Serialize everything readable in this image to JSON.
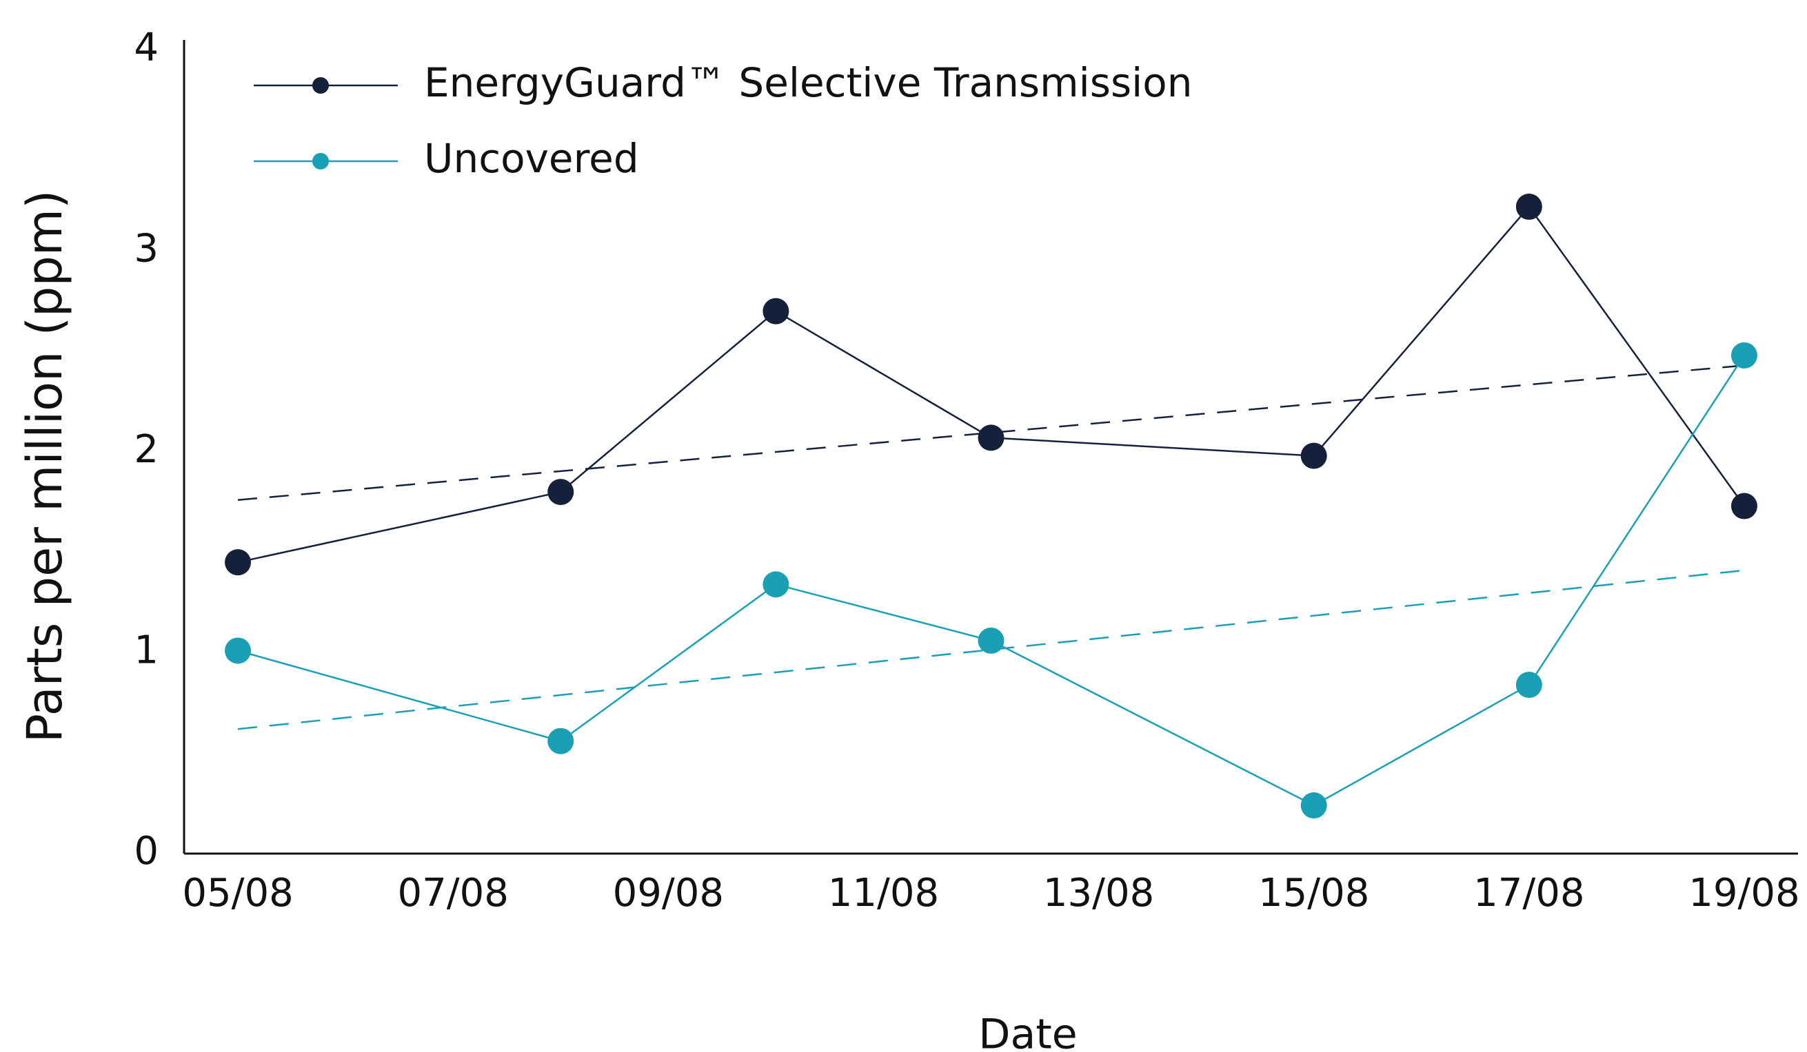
{
  "chart_data": {
    "type": "line",
    "x_label": "Date",
    "y_label": "Parts per million (ppm)",
    "x": [
      5,
      8,
      10,
      12,
      15,
      17,
      19
    ],
    "xlim": [
      4.5,
      19.5
    ],
    "xticks": [
      {
        "value": 5,
        "label": "05/08"
      },
      {
        "value": 7,
        "label": "07/08"
      },
      {
        "value": 9,
        "label": "09/08"
      },
      {
        "value": 11,
        "label": "11/08"
      },
      {
        "value": 13,
        "label": "13/08"
      },
      {
        "value": 15,
        "label": "15/08"
      },
      {
        "value": 17,
        "label": "17/08"
      },
      {
        "value": 19,
        "label": "19/08"
      }
    ],
    "ylim": [
      0,
      4.05
    ],
    "yticks": [
      0,
      1,
      2,
      3,
      4
    ],
    "grid": false,
    "legend": "top-left",
    "series": [
      {
        "name": "EnergyGuard™ Selective Transmission",
        "color": "#15213b",
        "values": [
          1.45,
          1.8,
          2.7,
          2.07,
          1.98,
          3.22,
          1.73
        ],
        "trend": [
          1.76,
          2.43
        ]
      },
      {
        "name": "Uncovered",
        "color": "#1aa0b5",
        "values": [
          1.01,
          0.56,
          1.34,
          1.06,
          0.24,
          0.84,
          2.48
        ],
        "trend": [
          0.62,
          1.41
        ]
      }
    ]
  }
}
